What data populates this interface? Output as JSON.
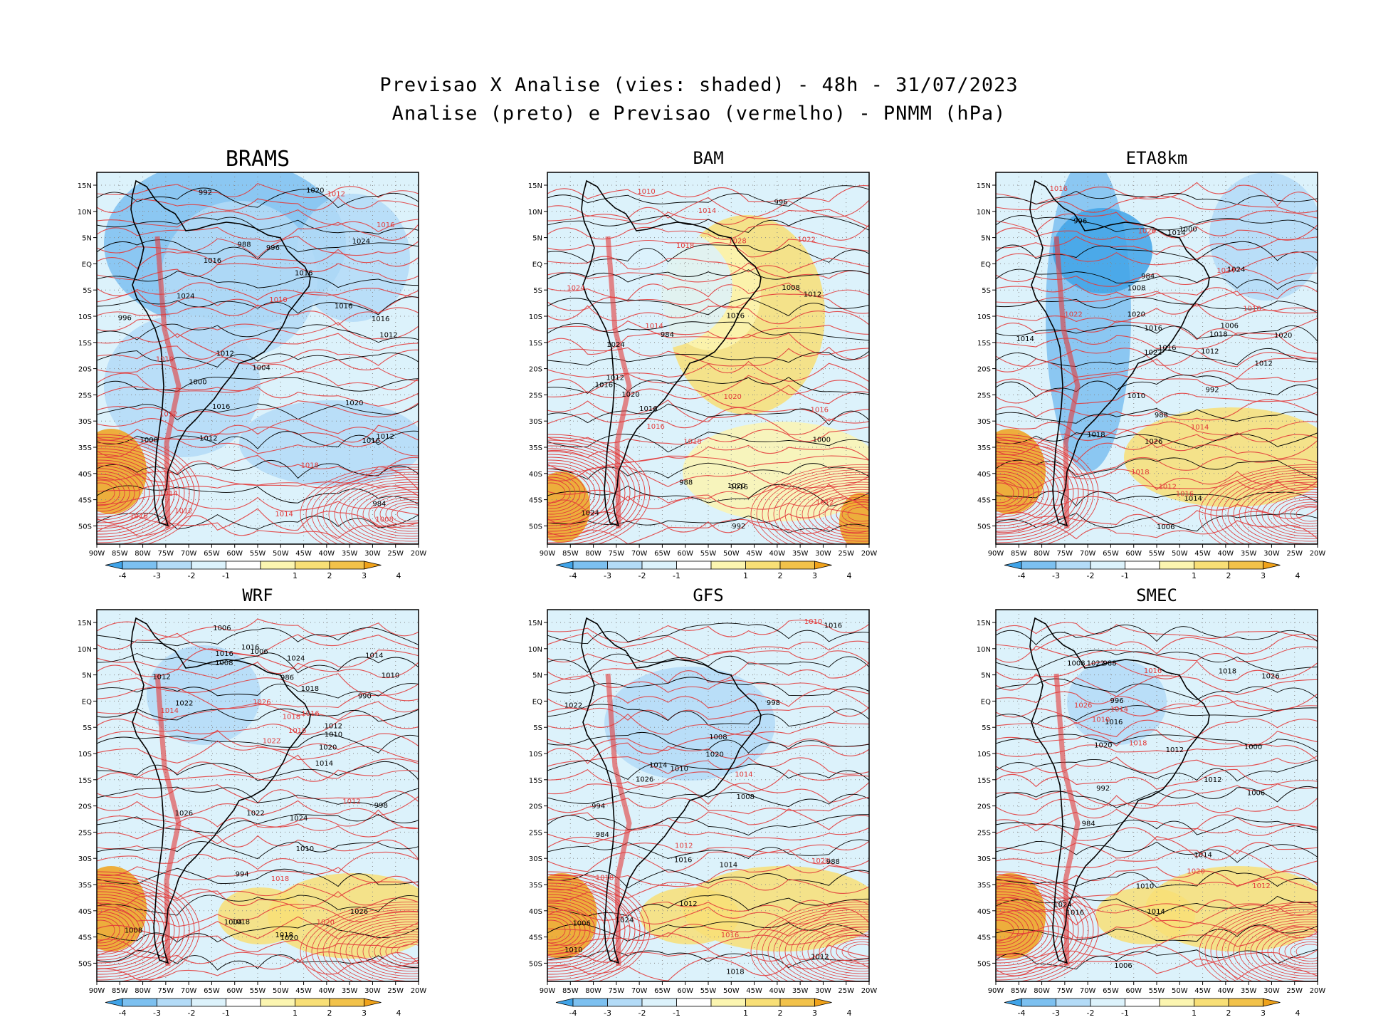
{
  "figure": {
    "title_line1": "Previsao X Analise (vies: shaded) - 48h - 31/07/2023",
    "title_line2": "Analise (preto) e Previsao (vermelho) - PNMM (hPa)"
  },
  "axes": {
    "lat_labels": [
      "15N",
      "10N",
      "5N",
      "EQ",
      "5S",
      "10S",
      "15S",
      "20S",
      "25S",
      "30S",
      "35S",
      "40S",
      "45S",
      "50S"
    ],
    "lon_labels": [
      "90W",
      "85W",
      "80W",
      "75W",
      "70W",
      "65W",
      "60W",
      "55W",
      "50W",
      "45W",
      "40W",
      "35W",
      "30W",
      "25W",
      "20W"
    ]
  },
  "colorbar": {
    "labels": [
      "-4",
      "-3",
      "-2",
      "-1",
      "1",
      "2",
      "3",
      "4"
    ],
    "colors": [
      "#3fa3e8",
      "#7cc0f0",
      "#b3dbf7",
      "#dcf2fb",
      "#ffffff",
      "#fbf5b0",
      "#f8df76",
      "#f2c24a",
      "#f0a21a"
    ]
  },
  "colors": {
    "analysis_contour": "#000000",
    "forecast_contour": "#e23b3b",
    "dotted_grid": "#888888"
  },
  "panels": [
    {
      "model": "BRAMS",
      "black_labels": [
        "1016",
        "1016",
        "1016",
        "1012",
        "1012",
        "1012",
        "1016",
        "1020",
        "1016",
        "1024",
        "1024",
        "1020",
        "1016",
        "1012",
        "1008",
        "1004",
        "1000",
        "996",
        "992",
        "988",
        "984",
        "996"
      ],
      "red_labels": [
        "1014",
        "1012",
        "1010",
        "1012",
        "1016",
        "1018",
        "1014",
        "1016",
        "1012",
        "1008",
        "1010"
      ]
    },
    {
      "model": "BAM",
      "black_labels": [
        "1016",
        "1016",
        "1020",
        "1016",
        "1024",
        "1020",
        "1024",
        "1016",
        "1012",
        "1008",
        "1000",
        "996",
        "992",
        "988",
        "984",
        "1012"
      ],
      "red_labels": [
        "1014",
        "1010",
        "1016",
        "1018",
        "1022",
        "1024",
        "1028",
        "1018",
        "1020",
        "1016",
        "1014",
        "1012"
      ]
    },
    {
      "model": "ETA8km",
      "black_labels": [
        "1012",
        "1014",
        "1016",
        "1018",
        "1020",
        "1022",
        "1024",
        "1026",
        "1020",
        "1018",
        "1014",
        "1012",
        "1010",
        "1006",
        "1000",
        "996",
        "992",
        "988",
        "984",
        "1008",
        "1006",
        "1016",
        "1014"
      ],
      "red_labels": [
        "1014",
        "1016",
        "1010",
        "1012",
        "1016",
        "1022",
        "1024",
        "1026",
        "1018"
      ]
    },
    {
      "model": "WRF",
      "black_labels": [
        "1012",
        "1010",
        "1016",
        "1018",
        "1014",
        "1020",
        "1022",
        "1016",
        "1018",
        "1024",
        "1026",
        "1020",
        "1022",
        "1024",
        "1026",
        "1018",
        "1014",
        "1012",
        "1008",
        "1004",
        "1010",
        "998",
        "994",
        "990",
        "986",
        "1006",
        "1010",
        "1008",
        "1006"
      ],
      "red_labels": [
        "1016",
        "1018",
        "1014",
        "1012",
        "1022",
        "1020",
        "1016",
        "1018",
        "1026"
      ]
    },
    {
      "model": "GFS",
      "black_labels": [
        "1012",
        "1014",
        "1016",
        "1018",
        "1020",
        "1022",
        "1024",
        "1026",
        "1016",
        "1014",
        "1012",
        "1008",
        "1006",
        "998",
        "994",
        "988",
        "984",
        "1010",
        "1008",
        "1010"
      ],
      "red_labels": [
        "1016",
        "1012",
        "1010",
        "1018",
        "1014",
        "1020"
      ]
    },
    {
      "model": "SMEC",
      "black_labels": [
        "1012",
        "1014",
        "1016",
        "1018",
        "1020",
        "1022",
        "1026",
        "1024",
        "1016",
        "1014",
        "1012",
        "1010",
        "1006",
        "1000",
        "996",
        "992",
        "988",
        "984",
        "1008",
        "1006"
      ],
      "red_labels": [
        "1016",
        "1012",
        "1010",
        "1014",
        "1020",
        "1018",
        "1026"
      ]
    }
  ]
}
